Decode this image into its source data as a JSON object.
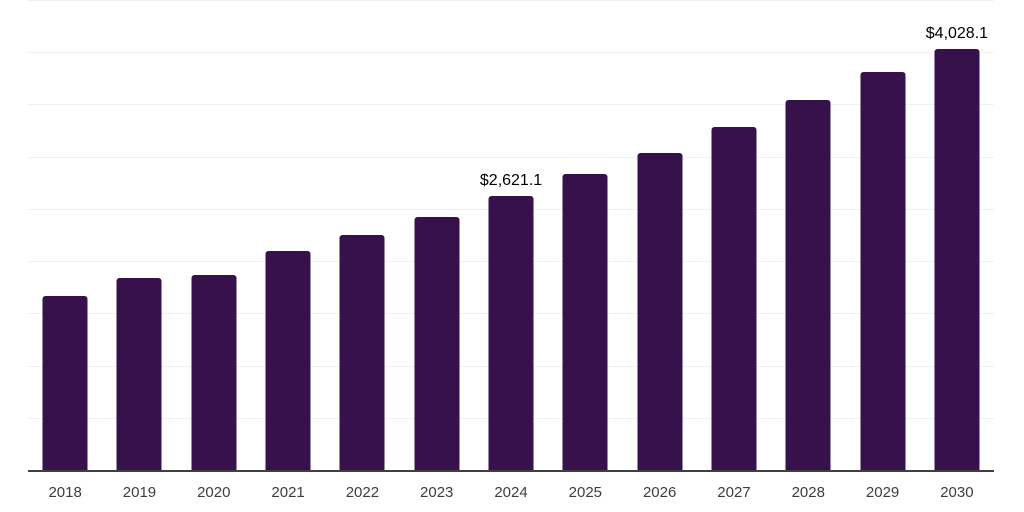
{
  "chart_data": {
    "type": "bar",
    "title": "",
    "xlabel": "",
    "ylabel": "",
    "categories": [
      "2018",
      "2019",
      "2020",
      "2021",
      "2022",
      "2023",
      "2024",
      "2025",
      "2026",
      "2027",
      "2028",
      "2029",
      "2030"
    ],
    "values": [
      1670,
      1835,
      1870,
      2100,
      2250,
      2425,
      2621.1,
      2830,
      3040,
      3280,
      3545,
      3810,
      4028.1
    ],
    "annotations": [
      {
        "category": "2024",
        "label": "$2,621.1"
      },
      {
        "category": "2030",
        "label": "$4,028.1"
      }
    ],
    "ylim": [
      0,
      4500
    ],
    "gridline_step": 500,
    "grid": true,
    "legend_position": "none",
    "y_axis_labels_visible": false,
    "colors": {
      "bar": "#36114B",
      "gridline": "#F1F0F2",
      "axis_line": "#3F3F3F",
      "tick_label": "#3D3D3D",
      "annotation": "#000000",
      "background": "#FFFFFF"
    }
  }
}
